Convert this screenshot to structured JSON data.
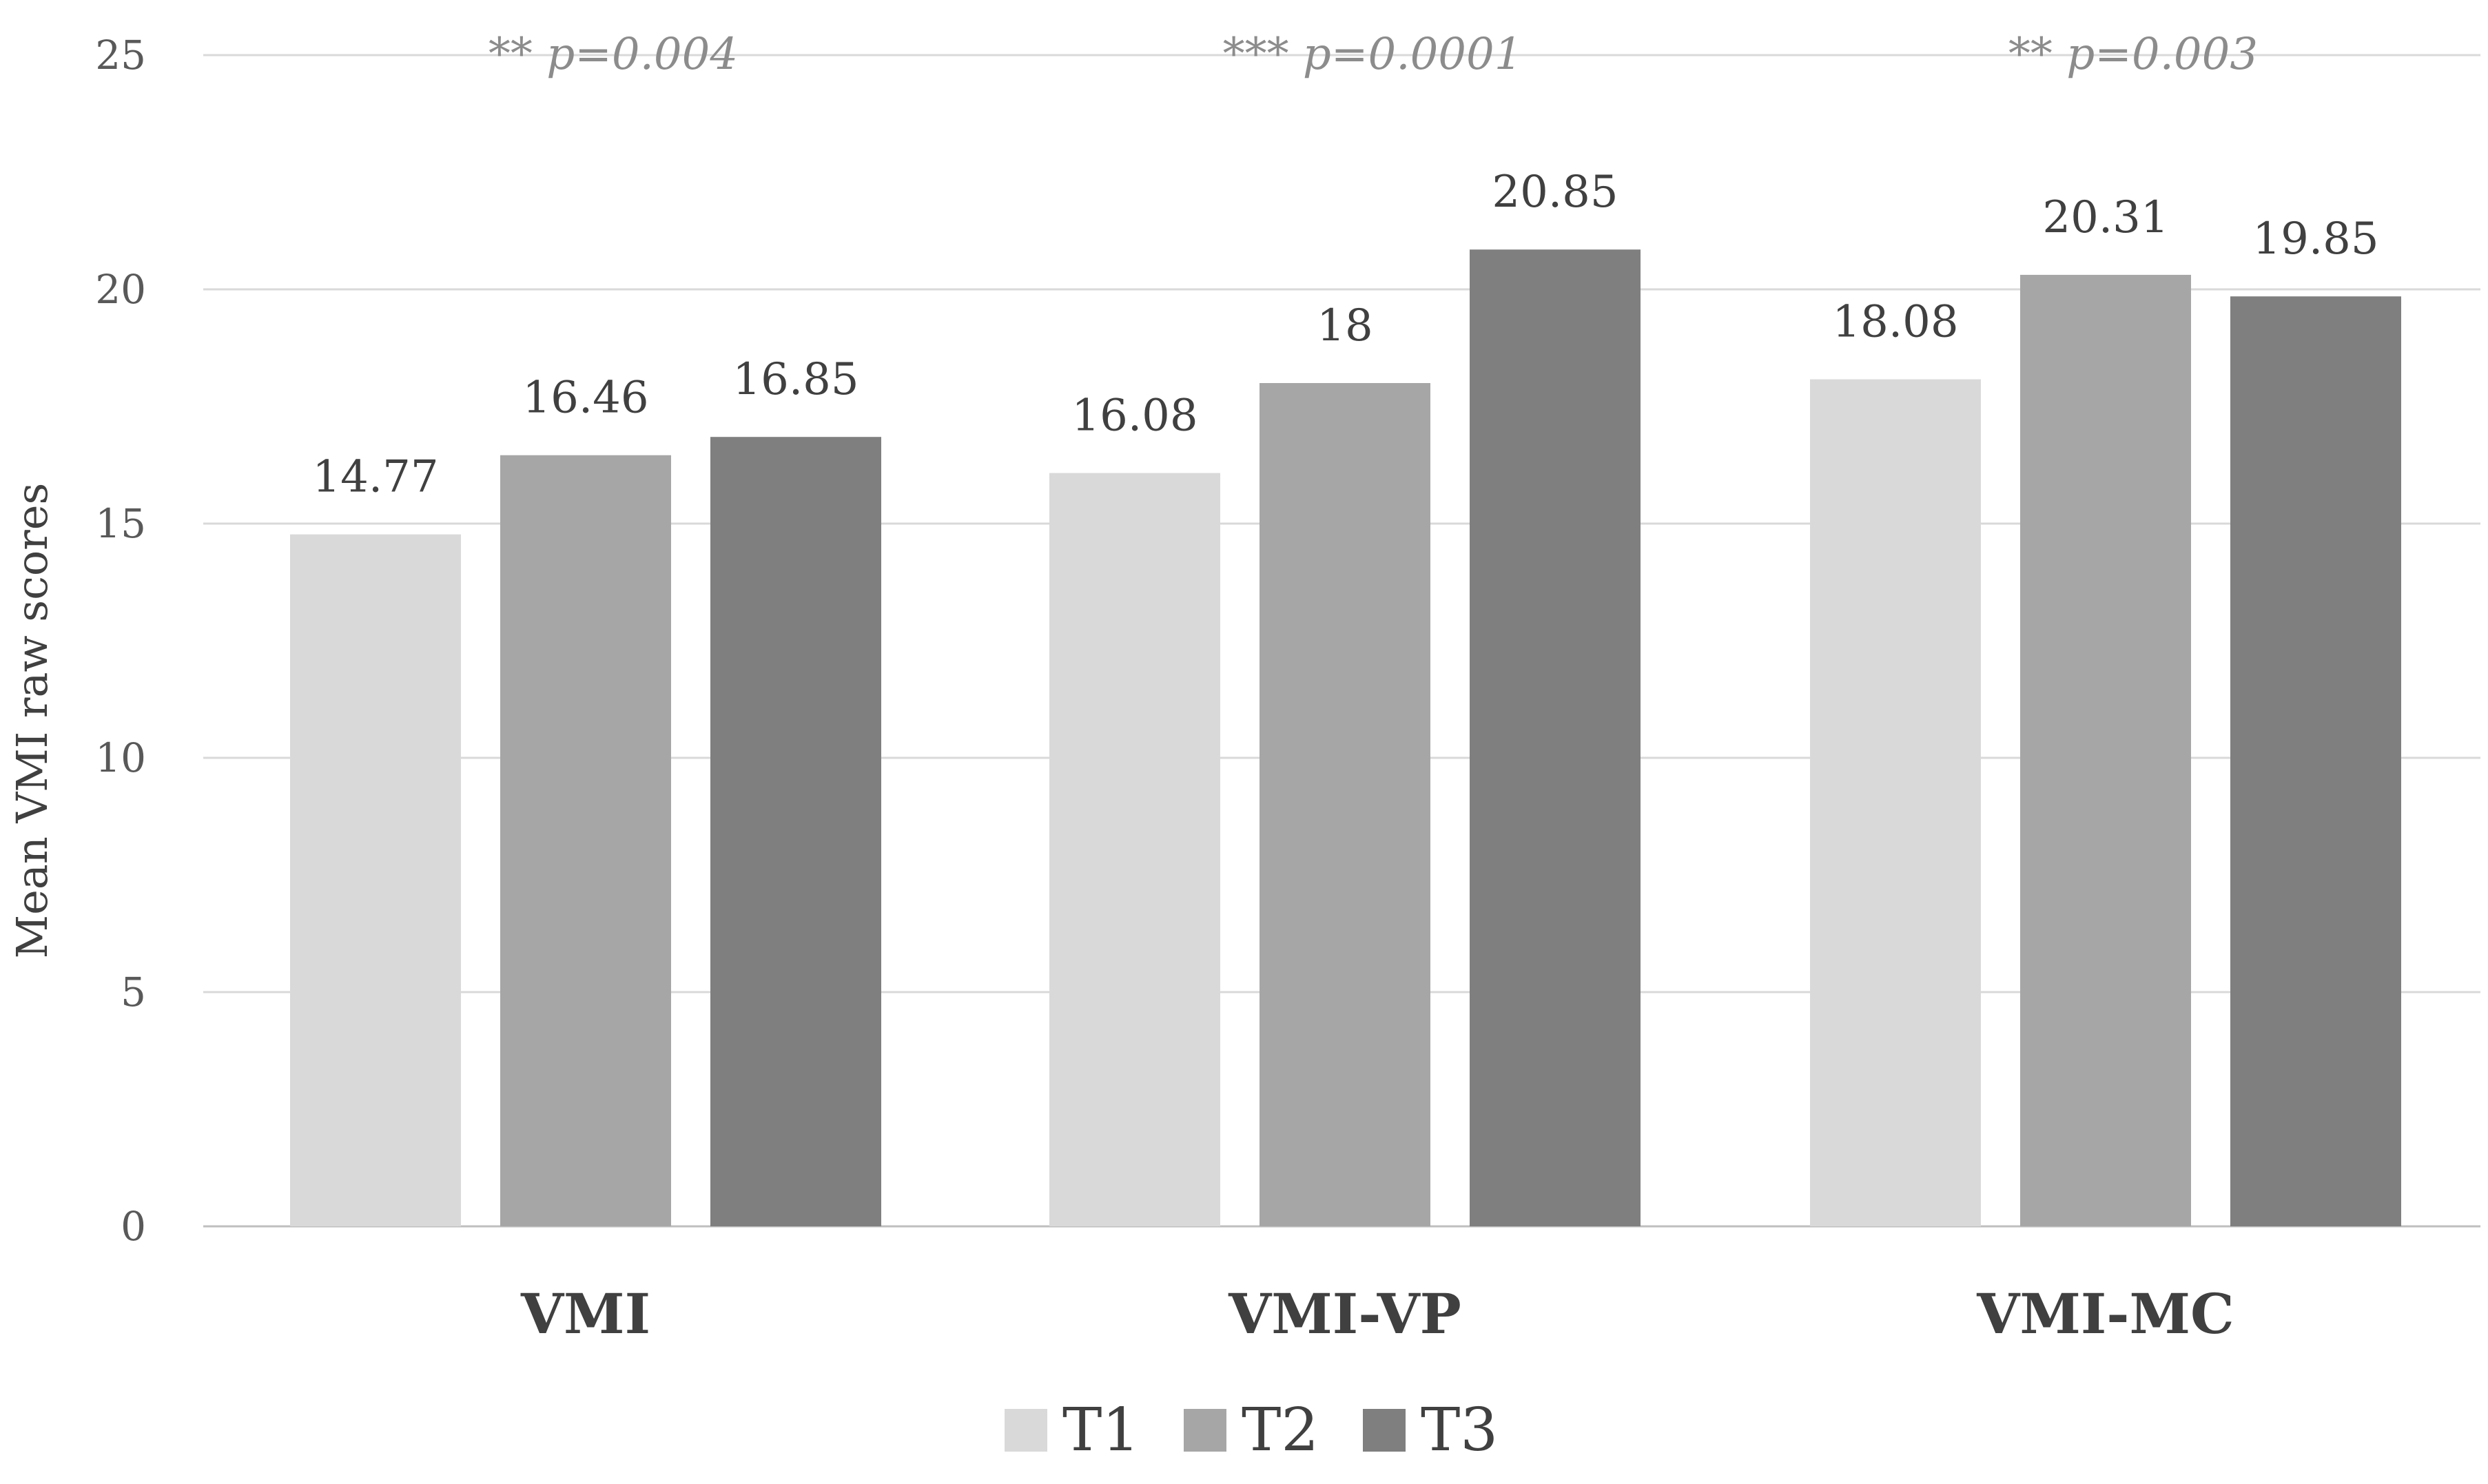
{
  "chart_data": {
    "type": "bar",
    "title": "",
    "xlabel": "",
    "ylabel": "Mean VMI raw scores",
    "ylim": [
      0,
      25
    ],
    "yticks": [
      0,
      5,
      10,
      15,
      20,
      25
    ],
    "grid": true,
    "legend_position": "bottom",
    "categories": [
      "VMI",
      "VMI-VP",
      "VMI-MC"
    ],
    "series": [
      {
        "name": "T1",
        "color": "#d9d9d9",
        "values": [
          14.77,
          16.08,
          18.08
        ],
        "labels": [
          "14.77",
          "16.08",
          "18.08"
        ]
      },
      {
        "name": "T2",
        "color": "#a6a6a6",
        "values": [
          16.46,
          18,
          20.31
        ],
        "labels": [
          "16.46",
          "18",
          "20.31"
        ]
      },
      {
        "name": "T3",
        "color": "#7f7f7f",
        "values": [
          16.85,
          20.85,
          19.85
        ],
        "labels": [
          "16.85",
          "20.85",
          "19.85"
        ]
      }
    ],
    "annotations": [
      "** p=0.004",
      "*** p=0.0001",
      "** p=0.003"
    ]
  }
}
